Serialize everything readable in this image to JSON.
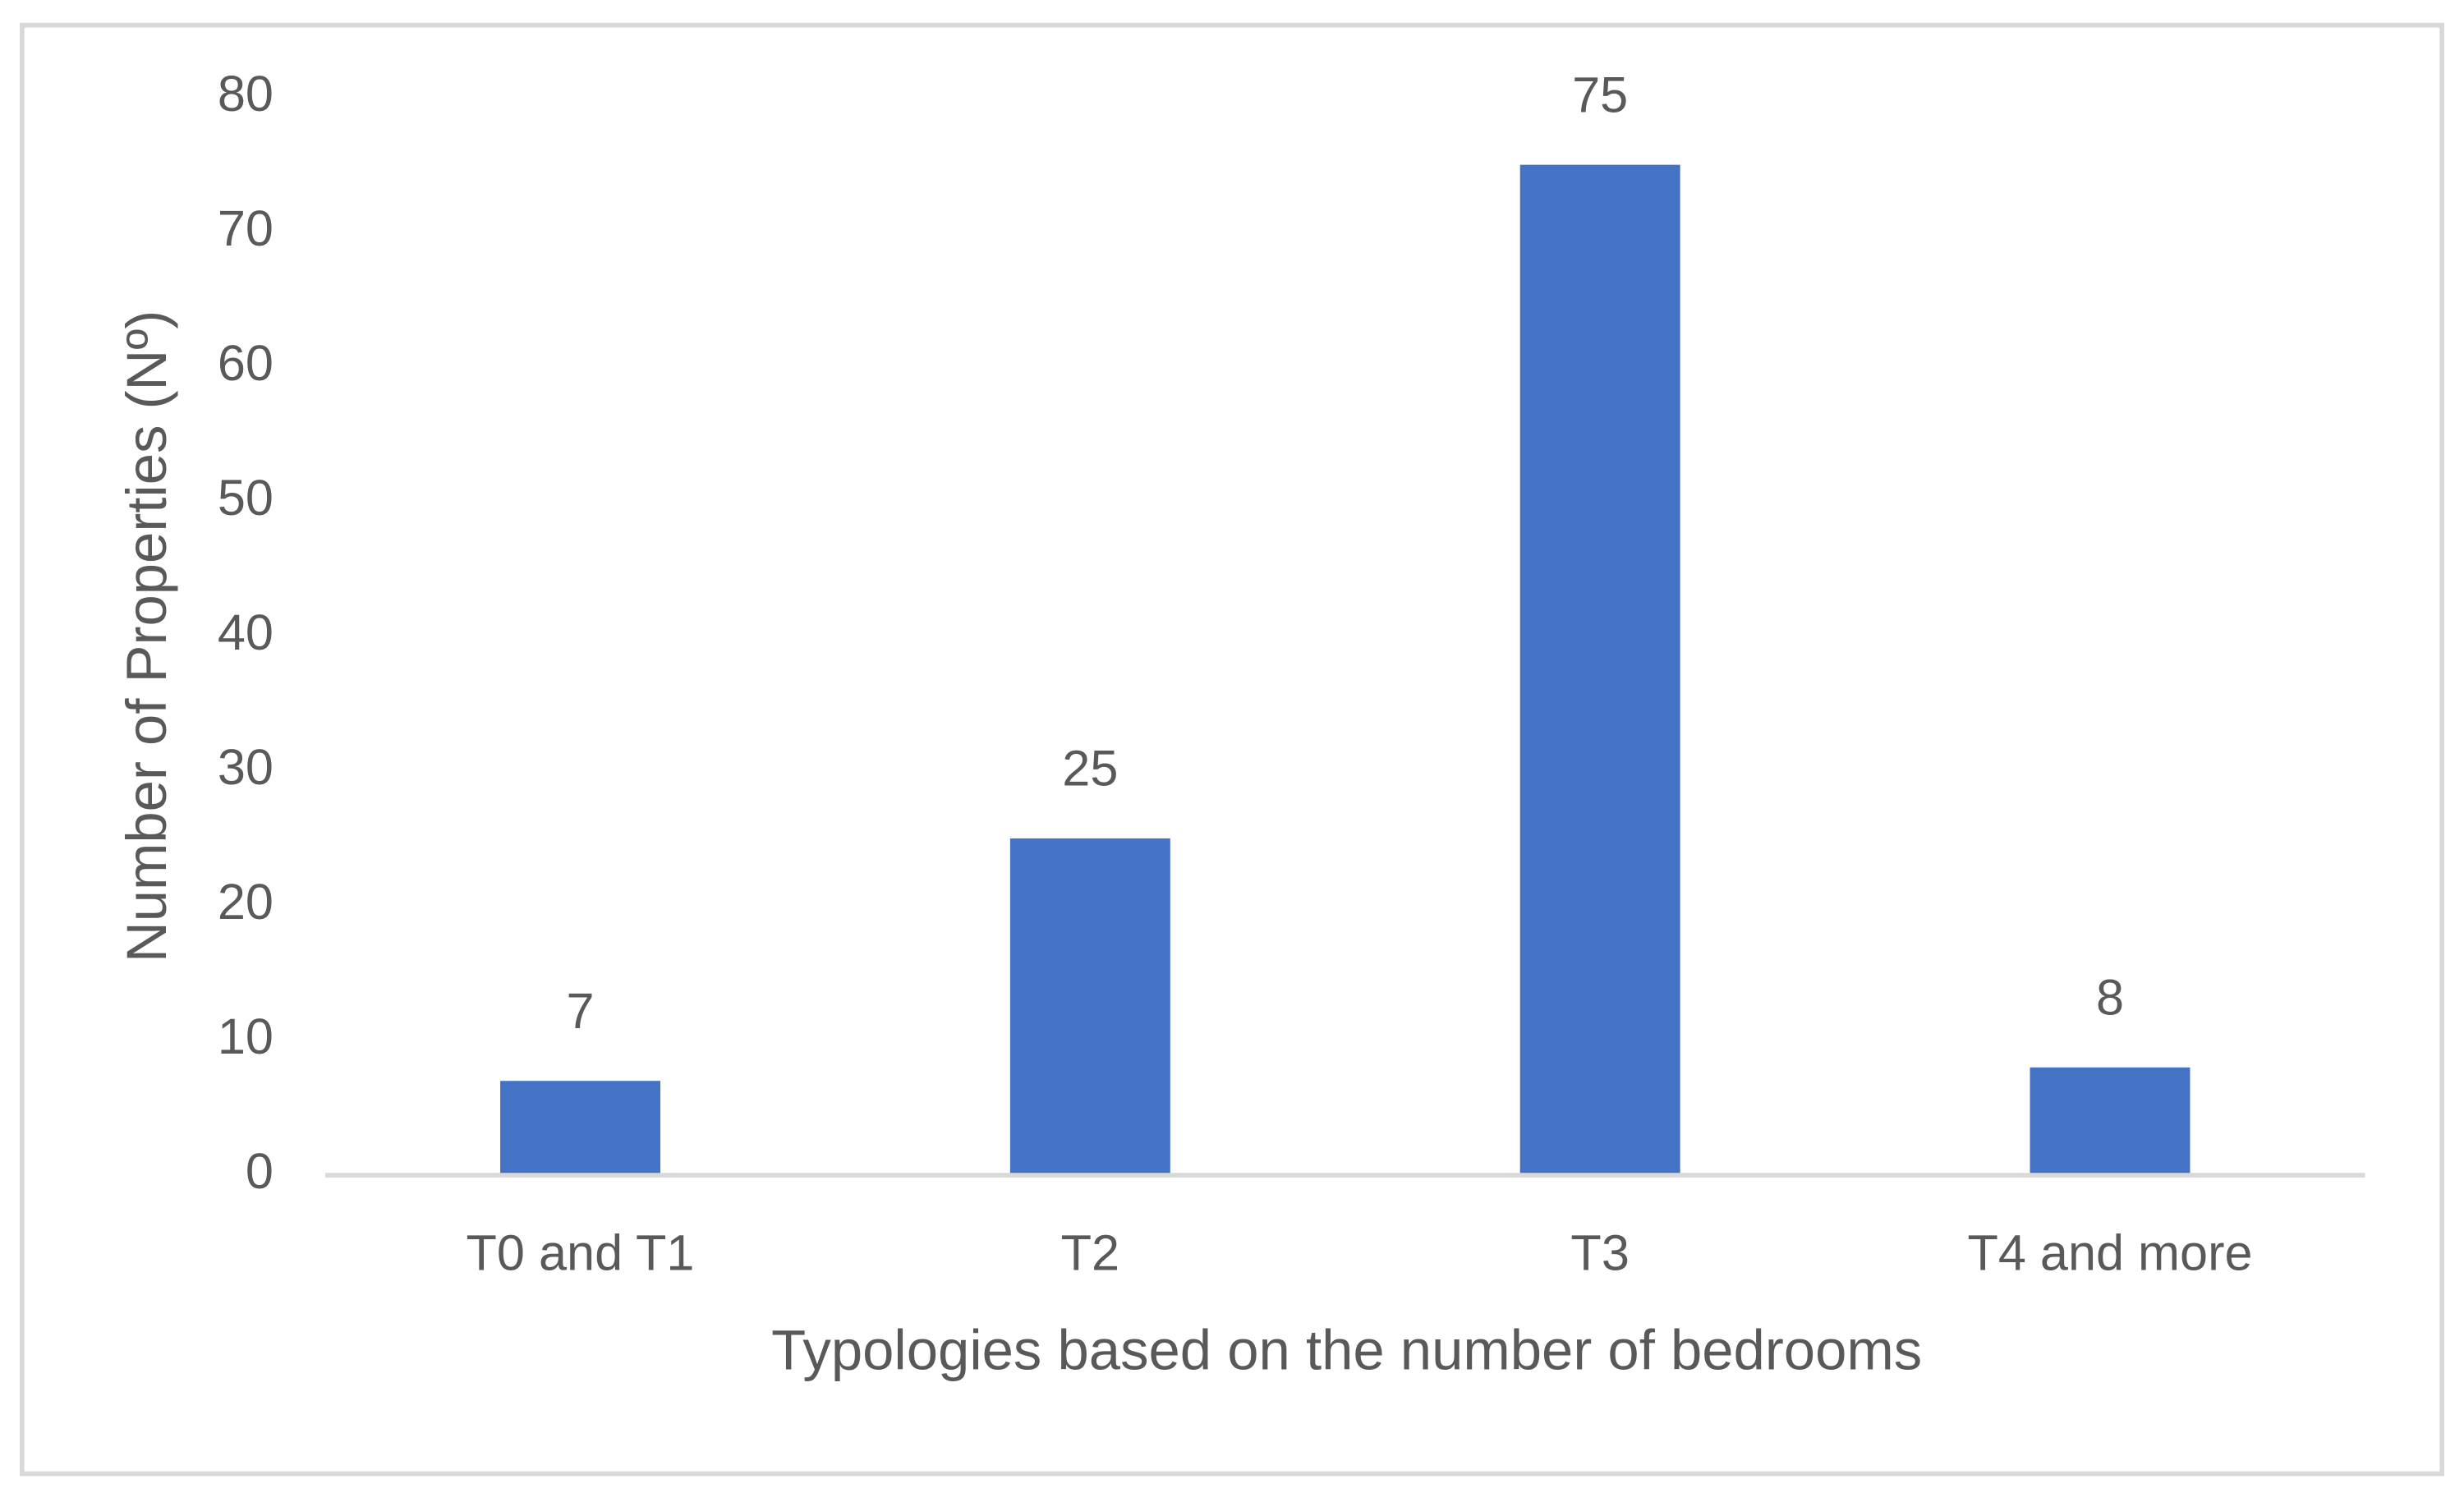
{
  "chart_data": {
    "type": "bar",
    "x_label": "Typologies based on the number of bedrooms",
    "y_label": "Number of Properties (Nº)",
    "categories": [
      "T0 and T1",
      "T2",
      "T3",
      "T4 and more"
    ],
    "values": [
      7,
      25,
      75,
      8
    ],
    "color": "#4472c4",
    "ylim": [
      0,
      80
    ],
    "yticks": [
      0,
      10,
      20,
      30,
      40,
      50,
      60,
      70,
      80
    ],
    "grid": false
  }
}
